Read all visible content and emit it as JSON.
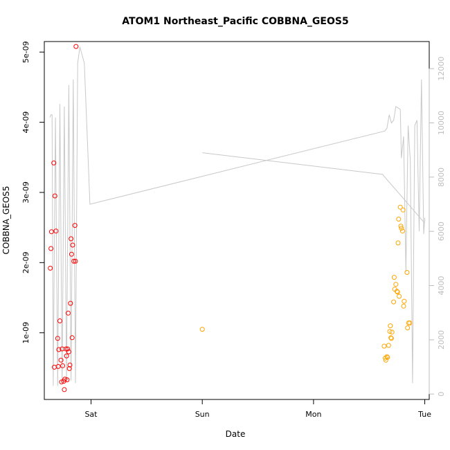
{
  "chart_data": {
    "type": "scatter",
    "title": "ATOM1 Northeast_Pacific COBBNA_GEOS5",
    "xlabel": "Date",
    "ylabel": "COBBNA_GEOS5",
    "x_ticks": [
      "Sat",
      "Sun",
      "Mon",
      "Tue"
    ],
    "y_ticks": [
      "1e-09",
      "2e-09",
      "3e-09",
      "4e-09",
      "5e-09"
    ],
    "y_tick_values": [
      1e-09,
      2e-09,
      3e-09,
      4e-09,
      5e-09
    ],
    "y2_ticks": [
      "0",
      "2000",
      "4000",
      "6000",
      "8000",
      "10000",
      "12000"
    ],
    "y2_tick_values": [
      0,
      2000,
      4000,
      6000,
      8000,
      10000,
      12000
    ],
    "xlim": [
      -0.42,
      3.04
    ],
    "ylim": [
      5e-11,
      5.15e-09
    ],
    "y2lim": [
      -200,
      13000
    ],
    "colors": {
      "series_red": "#ff0000",
      "series_orange": "#ffa500",
      "altitude_line": "#c8c8c8",
      "right_axis": "#bdbdbd"
    },
    "series": [
      {
        "color": "#ff0000",
        "points": [
          [
            -0.366,
            1.92e-09
          ],
          [
            -0.36,
            2.2e-09
          ],
          [
            -0.355,
            2.44e-09
          ],
          [
            -0.335,
            3.42e-09
          ],
          [
            -0.33,
            5.1e-10
          ],
          [
            -0.325,
            2.95e-09
          ],
          [
            -0.315,
            2.45e-09
          ],
          [
            -0.3,
            9.2e-10
          ],
          [
            -0.295,
            5.2e-10
          ],
          [
            -0.29,
            7.6e-10
          ],
          [
            -0.28,
            1.17e-09
          ],
          [
            -0.27,
            6.1e-10
          ],
          [
            -0.265,
            3e-10
          ],
          [
            -0.26,
            7.7e-10
          ],
          [
            -0.255,
            5.3e-10
          ],
          [
            -0.245,
            3.1e-10
          ],
          [
            -0.24,
            1.9e-10
          ],
          [
            -0.235,
            3.4e-10
          ],
          [
            -0.225,
            7.7e-10
          ],
          [
            -0.22,
            6.7e-10
          ],
          [
            -0.215,
            3.3e-10
          ],
          [
            -0.21,
            7.7e-10
          ],
          [
            -0.205,
            1.28e-09
          ],
          [
            -0.2,
            7.3e-10
          ],
          [
            -0.195,
            4.9e-10
          ],
          [
            -0.19,
            5.4e-10
          ],
          [
            -0.185,
            1.42e-09
          ],
          [
            -0.18,
            2.34e-09
          ],
          [
            -0.175,
            2.12e-09
          ],
          [
            -0.17,
            9.3e-10
          ],
          [
            -0.165,
            2.25e-09
          ],
          [
            -0.155,
            2.02e-09
          ],
          [
            -0.145,
            2.53e-09
          ],
          [
            -0.14,
            2.02e-09
          ],
          [
            -0.135,
            5.08e-09
          ]
        ]
      },
      {
        "color": "#ffa500",
        "points": [
          [
            1.0,
            1.05e-09
          ],
          [
            2.635,
            8.1e-10
          ],
          [
            2.645,
            6.4e-10
          ],
          [
            2.65,
            6.1e-10
          ],
          [
            2.66,
            6.6e-10
          ],
          [
            2.665,
            6.5e-10
          ],
          [
            2.675,
            8.2e-10
          ],
          [
            2.685,
            1.02e-09
          ],
          [
            2.69,
            1.1e-09
          ],
          [
            2.695,
            9.3e-10
          ],
          [
            2.7,
            9.2e-10
          ],
          [
            2.705,
            1.01e-09
          ],
          [
            2.72,
            1.44e-09
          ],
          [
            2.725,
            1.79e-09
          ],
          [
            2.73,
            1.62e-09
          ],
          [
            2.74,
            1.69e-09
          ],
          [
            2.75,
            1.59e-09
          ],
          [
            2.755,
            1.58e-09
          ],
          [
            2.76,
            2.28e-09
          ],
          [
            2.765,
            2.62e-09
          ],
          [
            2.77,
            1.52e-09
          ],
          [
            2.78,
            2.79e-09
          ],
          [
            2.785,
            2.52e-09
          ],
          [
            2.79,
            2.49e-09
          ],
          [
            2.8,
            2.45e-09
          ],
          [
            2.805,
            2.75e-09
          ],
          [
            2.81,
            1.38e-09
          ],
          [
            2.815,
            1.45e-09
          ],
          [
            2.84,
            1.86e-09
          ],
          [
            2.845,
            1.07e-09
          ],
          [
            2.855,
            1.14e-09
          ],
          [
            2.865,
            1.14e-09
          ]
        ]
      }
    ],
    "altitude_series": [
      {
        "points": [
          [
            -0.37,
            10200
          ],
          [
            -0.36,
            10300
          ],
          [
            -0.35,
            10300
          ],
          [
            -0.34,
            300
          ],
          [
            -0.32,
            10200
          ],
          [
            -0.3,
            300
          ],
          [
            -0.28,
            10700
          ],
          [
            -0.26,
            400
          ],
          [
            -0.24,
            10600
          ],
          [
            -0.22,
            500
          ],
          [
            -0.2,
            11400
          ],
          [
            -0.18,
            500
          ],
          [
            -0.16,
            11600
          ],
          [
            -0.14,
            400
          ],
          [
            -0.12,
            12200
          ],
          [
            -0.1,
            12800
          ],
          [
            -0.06,
            12200
          ],
          [
            -0.01,
            7000
          ],
          [
            2.64,
            9700
          ],
          [
            2.66,
            9800
          ],
          [
            2.68,
            10300
          ],
          [
            2.7,
            10000
          ],
          [
            2.72,
            10100
          ],
          [
            2.74,
            10600
          ],
          [
            2.78,
            10500
          ],
          [
            2.79,
            8700
          ],
          [
            2.81,
            9500
          ],
          [
            2.83,
            4500
          ],
          [
            2.85,
            9900
          ],
          [
            2.87,
            8600
          ],
          [
            2.89,
            400
          ],
          [
            2.91,
            9900
          ],
          [
            2.93,
            10100
          ],
          [
            2.95,
            6000
          ],
          [
            2.97,
            11600
          ],
          [
            2.99,
            5900
          ],
          [
            3.0,
            6500
          ]
        ]
      },
      {
        "points": [
          [
            1.0,
            8900
          ],
          [
            2.62,
            8100
          ],
          [
            3.0,
            6300
          ]
        ]
      }
    ],
    "grid": false,
    "legend": "none"
  }
}
